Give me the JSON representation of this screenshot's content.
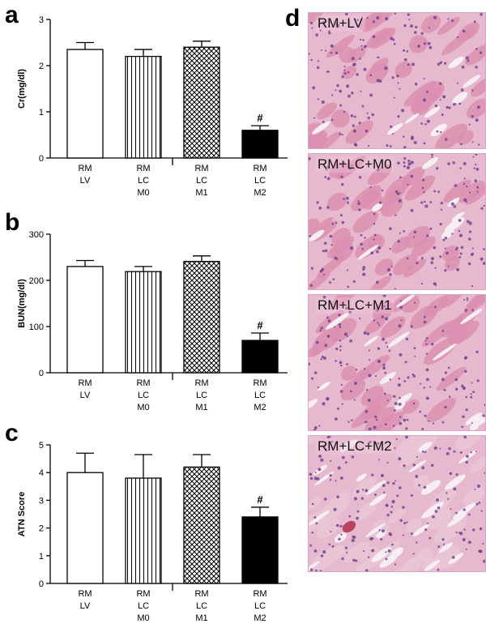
{
  "panels": {
    "a": "a",
    "b": "b",
    "c": "c",
    "d": "d"
  },
  "chart_data": [
    {
      "type": "bar",
      "ylabel": "Cr(mg/dl)",
      "ylim": [
        0,
        3
      ],
      "yticks": [
        "0",
        "1",
        "2",
        "3"
      ],
      "categories": [
        [
          "RM",
          "LV"
        ],
        [
          "RM",
          "LC",
          "M0"
        ],
        [
          "RM",
          "LC",
          "M1"
        ],
        [
          "RM",
          "LC",
          "M2"
        ]
      ],
      "values": [
        2.35,
        2.2,
        2.4,
        0.6
      ],
      "errors": [
        0.15,
        0.15,
        0.13,
        0.1
      ],
      "patterns": [
        "white",
        "vertical",
        "crosshatch",
        "black"
      ],
      "annotations": [
        "",
        "",
        "",
        "#"
      ]
    },
    {
      "type": "bar",
      "ylabel": "BUN(mg/dl)",
      "ylim": [
        0,
        300
      ],
      "yticks": [
        "0",
        "100",
        "200",
        "300"
      ],
      "categories": [
        [
          "RM",
          "LV"
        ],
        [
          "RM",
          "LC",
          "M0"
        ],
        [
          "RM",
          "LC",
          "M1"
        ],
        [
          "RM",
          "LC",
          "M2"
        ]
      ],
      "values": [
        230,
        219,
        241,
        70
      ],
      "errors": [
        13,
        11,
        12,
        16
      ],
      "patterns": [
        "white",
        "vertical",
        "crosshatch",
        "black"
      ],
      "annotations": [
        "",
        "",
        "",
        "#"
      ]
    },
    {
      "type": "bar",
      "ylabel": "ATN Score",
      "ylim": [
        0,
        5
      ],
      "yticks": [
        "0",
        "1",
        "2",
        "3",
        "4",
        "5"
      ],
      "categories": [
        [
          "RM",
          "LV"
        ],
        [
          "RM",
          "LC",
          "M0"
        ],
        [
          "RM",
          "LC",
          "M1"
        ],
        [
          "RM",
          "LC",
          "M2"
        ]
      ],
      "values": [
        4.0,
        3.8,
        4.2,
        2.4
      ],
      "errors": [
        0.7,
        0.85,
        0.45,
        0.35
      ],
      "patterns": [
        "white",
        "vertical",
        "crosshatch",
        "black"
      ],
      "annotations": [
        "",
        "",
        "",
        "#"
      ]
    }
  ],
  "micrographs": [
    {
      "label": "RM+LV"
    },
    {
      "label": "RM+LC+M0"
    },
    {
      "label": "RM+LC+M1"
    },
    {
      "label": "RM+LC+M2"
    }
  ]
}
